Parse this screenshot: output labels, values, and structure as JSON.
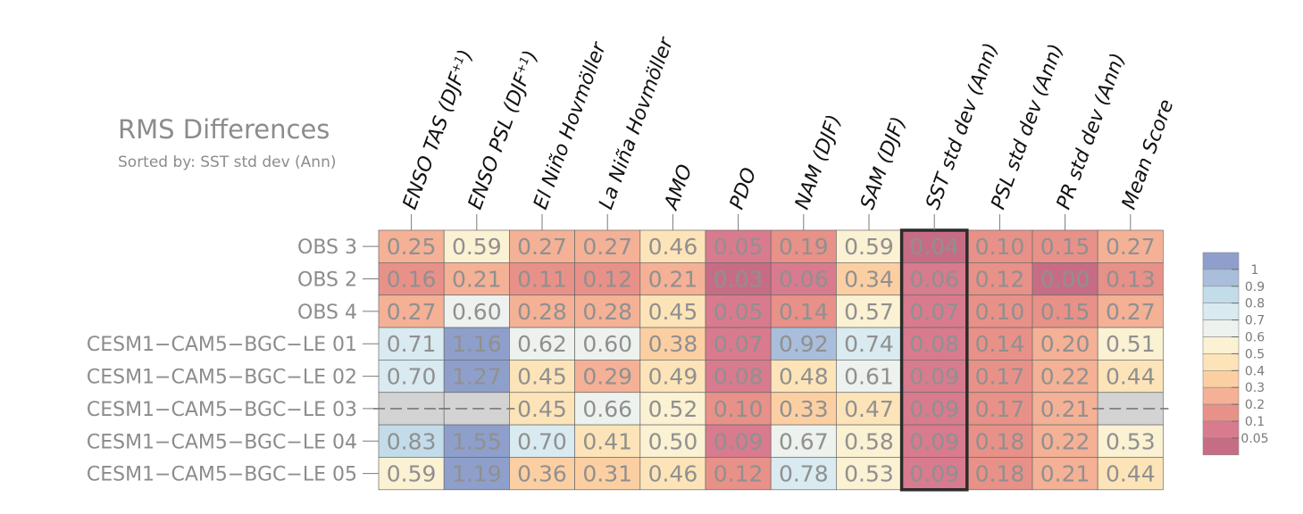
{
  "chart_data": {
    "type": "heatmap",
    "title": "RMS Differences",
    "subtitle": "Sorted by: SST std dev (Ann)",
    "columns": [
      "ENSO TAS (DJF+1)",
      "ENSO PSL (DJF+1)",
      "El Niño Hovmöller",
      "La Niña Hovmöller",
      "AMO",
      "PDO",
      "NAM (DJF)",
      "SAM (DJF)",
      "SST std dev (Ann)",
      "PSL std dev (Ann)",
      "PR std dev (Ann)",
      "Mean Score"
    ],
    "column_labels": [
      {
        "main": "ENSO TAS (DJF",
        "sup": "+1",
        "end": ")"
      },
      {
        "main": "ENSO PSL (DJF",
        "sup": "+1",
        "end": ")"
      },
      {
        "main": "El Niño Hovmöller"
      },
      {
        "main": "La Niña Hovmöller"
      },
      {
        "main": "AMO"
      },
      {
        "main": "PDO"
      },
      {
        "main": "NAM (DJF)"
      },
      {
        "main": "SAM (DJF)"
      },
      {
        "main": "SST std dev (Ann)"
      },
      {
        "main": "PSL std dev (Ann)"
      },
      {
        "main": "PR std dev (Ann)"
      },
      {
        "main": "Mean Score"
      }
    ],
    "rows": [
      "OBS 3",
      "OBS 2",
      "OBS 4",
      "CESM1−CAM5−BGC−LE 01",
      "CESM1−CAM5−BGC−LE 02",
      "CESM1−CAM5−BGC−LE 03",
      "CESM1−CAM5−BGC−LE 04",
      "CESM1−CAM5−BGC−LE 05"
    ],
    "values": [
      [
        0.25,
        0.59,
        0.27,
        0.27,
        0.46,
        0.05,
        0.19,
        0.59,
        0.04,
        0.1,
        0.15,
        0.27
      ],
      [
        0.16,
        0.21,
        0.11,
        0.12,
        0.21,
        0.03,
        0.06,
        0.34,
        0.06,
        0.12,
        0.0,
        0.13
      ],
      [
        0.27,
        0.6,
        0.28,
        0.28,
        0.45,
        0.05,
        0.14,
        0.57,
        0.07,
        0.1,
        0.15,
        0.27
      ],
      [
        0.71,
        1.16,
        0.62,
        0.6,
        0.38,
        0.07,
        0.92,
        0.74,
        0.08,
        0.14,
        0.2,
        0.51
      ],
      [
        0.7,
        1.27,
        0.45,
        0.29,
        0.49,
        0.08,
        0.48,
        0.61,
        0.09,
        0.17,
        0.22,
        0.44
      ],
      [
        null,
        null,
        0.45,
        0.66,
        0.52,
        0.1,
        0.33,
        0.47,
        0.09,
        0.17,
        0.21,
        null
      ],
      [
        0.83,
        1.55,
        0.7,
        0.41,
        0.5,
        0.09,
        0.67,
        0.58,
        0.09,
        0.18,
        0.22,
        0.53
      ],
      [
        0.59,
        1.19,
        0.36,
        0.31,
        0.46,
        0.12,
        0.78,
        0.53,
        0.09,
        0.18,
        0.21,
        0.44
      ]
    ],
    "highlighted_column": "SST std dev (Ann)",
    "missing_value_color": "#d3d3d3",
    "colorbar": {
      "levels": [
        "1",
        "0.9",
        "0.8",
        "0.7",
        "0.6",
        "0.5",
        "0.4",
        "0.3",
        "0.2",
        "0.1",
        "0.05"
      ],
      "colors": [
        "#8e9fcb",
        "#a9bedb",
        "#c3dcea",
        "#d9eaf0",
        "#edf2ef",
        "#fbf1d3",
        "#fde4b8",
        "#fccfa3",
        "#f4b196",
        "#e89188",
        "#d87b8e",
        "#c66d85"
      ]
    }
  }
}
